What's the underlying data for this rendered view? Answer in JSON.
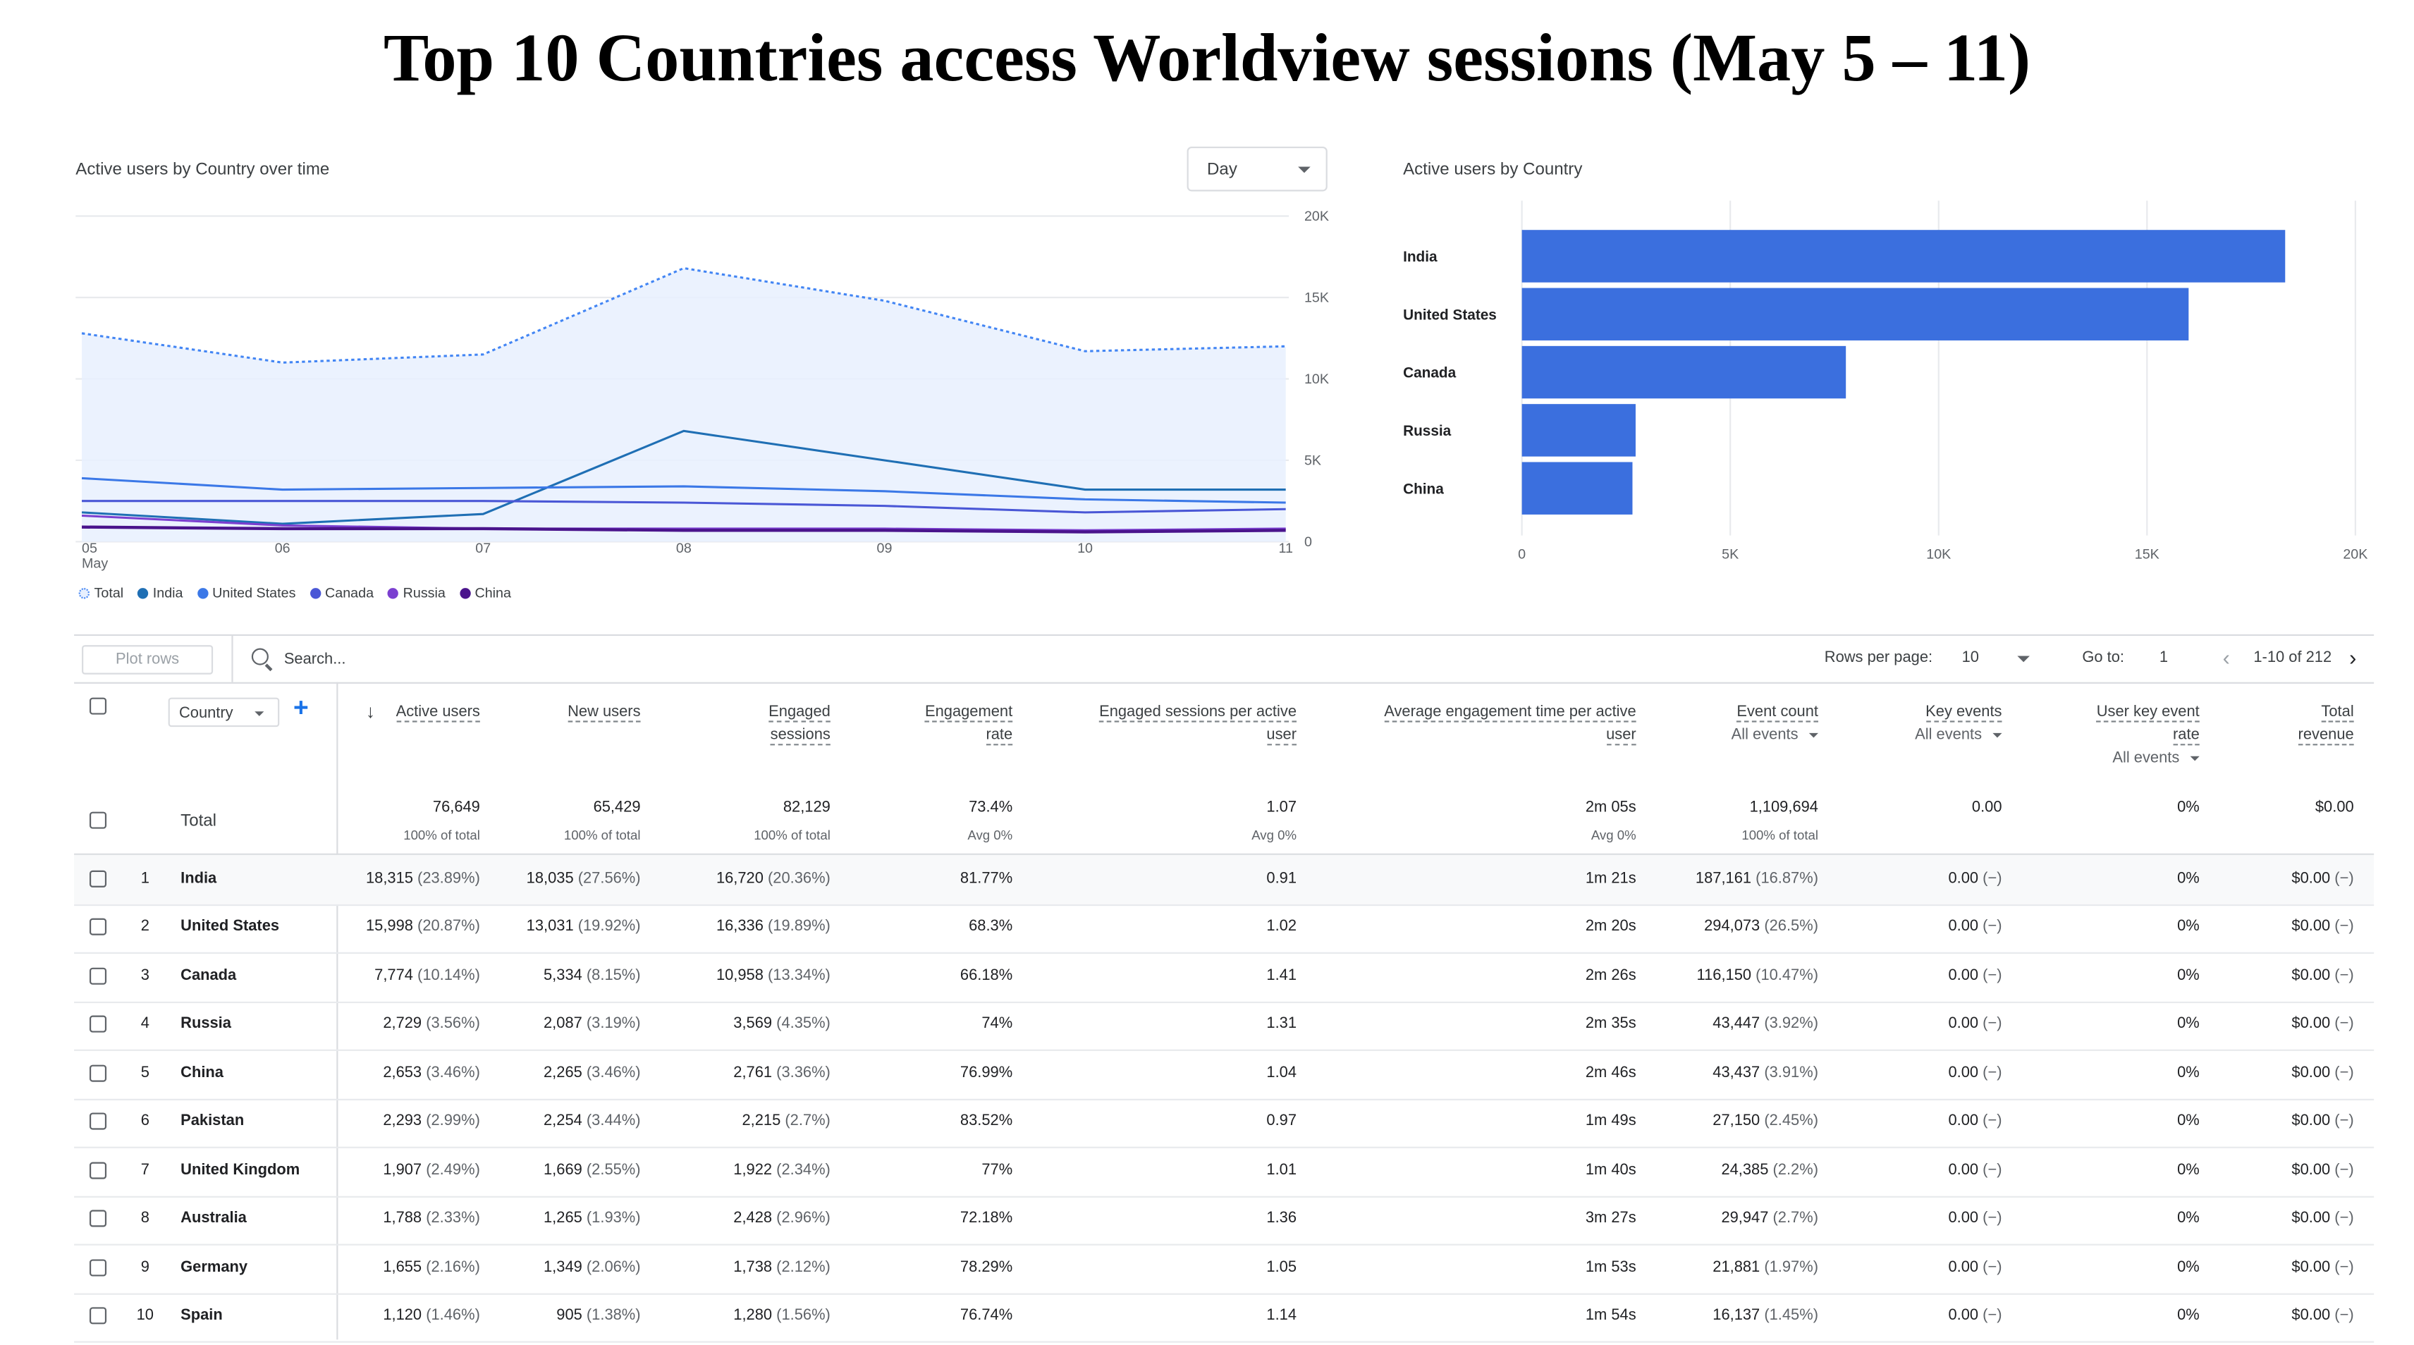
{
  "page_title": "Top 10 Countries access Worldview sessions (May 5 – 11)",
  "line_card": {
    "title": "Active users by Country over time",
    "granularity": "Day",
    "legend": [
      {
        "name": "Total",
        "color": "#4285f4",
        "hollow": true
      },
      {
        "name": "India",
        "color": "#1f6fb4"
      },
      {
        "name": "United States",
        "color": "#3b78e7"
      },
      {
        "name": "Canada",
        "color": "#4a57d6"
      },
      {
        "name": "Russia",
        "color": "#7b3fd0"
      },
      {
        "name": "China",
        "color": "#4a148c"
      }
    ]
  },
  "bar_card": {
    "title": "Active users by Country"
  },
  "chart_data": [
    {
      "type": "line",
      "x": [
        "05",
        "06",
        "07",
        "08",
        "09",
        "10",
        "11"
      ],
      "x_sublabel": "May",
      "ylim": [
        0,
        20000
      ],
      "yticks": [
        "0",
        "5K",
        "10K",
        "15K",
        "20K"
      ],
      "grid": true,
      "series": [
        {
          "name": "Total",
          "values": [
            12800,
            11000,
            11500,
            16800,
            14800,
            11700,
            12000
          ],
          "color": "#4285f4",
          "dashed": true,
          "area": true
        },
        {
          "name": "India",
          "values": [
            1800,
            1100,
            1700,
            6800,
            5000,
            3200,
            3200
          ],
          "color": "#1f6fb4"
        },
        {
          "name": "United States",
          "values": [
            3900,
            3200,
            3300,
            3400,
            3100,
            2600,
            2400
          ],
          "color": "#3b78e7"
        },
        {
          "name": "Canada",
          "values": [
            2500,
            2500,
            2500,
            2400,
            2200,
            1800,
            2000
          ],
          "color": "#4a57d6"
        },
        {
          "name": "Russia",
          "values": [
            1600,
            1000,
            800,
            800,
            800,
            700,
            800
          ],
          "color": "#7b3fd0"
        },
        {
          "name": "China",
          "values": [
            900,
            800,
            800,
            700,
            700,
            600,
            700
          ],
          "color": "#4a148c"
        }
      ]
    },
    {
      "type": "bar",
      "orientation": "horizontal",
      "categories": [
        "India",
        "United States",
        "Canada",
        "Russia",
        "China"
      ],
      "values": [
        18315,
        15998,
        7774,
        2729,
        2653
      ],
      "xlim": [
        0,
        20000
      ],
      "xticks": [
        "0",
        "5K",
        "10K",
        "15K",
        "20K"
      ],
      "color": "#3b6fde",
      "grid": true
    }
  ],
  "table": {
    "plot_rows": "Plot rows",
    "search_placeholder": "Search...",
    "rows_per_page_label": "Rows per page:",
    "rows_per_page": "10",
    "goto_label": "Go to:",
    "goto_value": "1",
    "range": "1-10 of 212",
    "dimension": "Country",
    "columns": [
      {
        "l1": "Active users",
        "l2": "",
        "sub": ""
      },
      {
        "l1": "New users",
        "l2": "",
        "sub": ""
      },
      {
        "l1": "Engaged",
        "l2": "sessions",
        "sub": ""
      },
      {
        "l1": "Engagement",
        "l2": "rate",
        "sub": ""
      },
      {
        "l1": "Engaged sessions per active",
        "l2": "user",
        "sub": ""
      },
      {
        "l1": "Average engagement time per active",
        "l2": "user",
        "sub": ""
      },
      {
        "l1": "Event count",
        "l2": "",
        "sub": "All events"
      },
      {
        "l1": "Key events",
        "l2": "",
        "sub": "All events"
      },
      {
        "l1": "User key event",
        "l2": "rate",
        "sub": "All events"
      },
      {
        "l1": "Total",
        "l2": "revenue",
        "sub": ""
      }
    ],
    "total": {
      "label": "Total",
      "values": [
        "76,649",
        "65,429",
        "82,129",
        "73.4%",
        "1.07",
        "2m 05s",
        "1,109,694",
        "0.00",
        "0%",
        "$0.00"
      ],
      "subs": [
        "100% of total",
        "100% of total",
        "100% of total",
        "Avg 0%",
        "Avg 0%",
        "Avg 0%",
        "100% of total",
        "",
        "",
        ""
      ]
    },
    "rows": [
      {
        "n": "1",
        "country": "India",
        "cells": [
          [
            "18,315",
            "(23.89%)"
          ],
          [
            "18,035",
            "(27.56%)"
          ],
          [
            "16,720",
            "(20.36%)"
          ],
          [
            "81.77%",
            ""
          ],
          [
            "0.91",
            ""
          ],
          [
            "1m 21s",
            ""
          ],
          [
            "187,161",
            "(16.87%)"
          ],
          [
            "0.00",
            "(−)"
          ],
          [
            "0%",
            ""
          ],
          [
            "$0.00",
            "(−)"
          ]
        ]
      },
      {
        "n": "2",
        "country": "United States",
        "cells": [
          [
            "15,998",
            "(20.87%)"
          ],
          [
            "13,031",
            "(19.92%)"
          ],
          [
            "16,336",
            "(19.89%)"
          ],
          [
            "68.3%",
            ""
          ],
          [
            "1.02",
            ""
          ],
          [
            "2m 20s",
            ""
          ],
          [
            "294,073",
            "(26.5%)"
          ],
          [
            "0.00",
            "(−)"
          ],
          [
            "0%",
            ""
          ],
          [
            "$0.00",
            "(−)"
          ]
        ]
      },
      {
        "n": "3",
        "country": "Canada",
        "cells": [
          [
            "7,774",
            "(10.14%)"
          ],
          [
            "5,334",
            "(8.15%)"
          ],
          [
            "10,958",
            "(13.34%)"
          ],
          [
            "66.18%",
            ""
          ],
          [
            "1.41",
            ""
          ],
          [
            "2m 26s",
            ""
          ],
          [
            "116,150",
            "(10.47%)"
          ],
          [
            "0.00",
            "(−)"
          ],
          [
            "0%",
            ""
          ],
          [
            "$0.00",
            "(−)"
          ]
        ]
      },
      {
        "n": "4",
        "country": "Russia",
        "cells": [
          [
            "2,729",
            "(3.56%)"
          ],
          [
            "2,087",
            "(3.19%)"
          ],
          [
            "3,569",
            "(4.35%)"
          ],
          [
            "74%",
            ""
          ],
          [
            "1.31",
            ""
          ],
          [
            "2m 35s",
            ""
          ],
          [
            "43,447",
            "(3.92%)"
          ],
          [
            "0.00",
            "(−)"
          ],
          [
            "0%",
            ""
          ],
          [
            "$0.00",
            "(−)"
          ]
        ]
      },
      {
        "n": "5",
        "country": "China",
        "cells": [
          [
            "2,653",
            "(3.46%)"
          ],
          [
            "2,265",
            "(3.46%)"
          ],
          [
            "2,761",
            "(3.36%)"
          ],
          [
            "76.99%",
            ""
          ],
          [
            "1.04",
            ""
          ],
          [
            "2m 46s",
            ""
          ],
          [
            "43,437",
            "(3.91%)"
          ],
          [
            "0.00",
            "(−)"
          ],
          [
            "0%",
            ""
          ],
          [
            "$0.00",
            "(−)"
          ]
        ]
      },
      {
        "n": "6",
        "country": "Pakistan",
        "cells": [
          [
            "2,293",
            "(2.99%)"
          ],
          [
            "2,254",
            "(3.44%)"
          ],
          [
            "2,215",
            "(2.7%)"
          ],
          [
            "83.52%",
            ""
          ],
          [
            "0.97",
            ""
          ],
          [
            "1m 49s",
            ""
          ],
          [
            "27,150",
            "(2.45%)"
          ],
          [
            "0.00",
            "(−)"
          ],
          [
            "0%",
            ""
          ],
          [
            "$0.00",
            "(−)"
          ]
        ]
      },
      {
        "n": "7",
        "country": "United Kingdom",
        "cells": [
          [
            "1,907",
            "(2.49%)"
          ],
          [
            "1,669",
            "(2.55%)"
          ],
          [
            "1,922",
            "(2.34%)"
          ],
          [
            "77%",
            ""
          ],
          [
            "1.01",
            ""
          ],
          [
            "1m 40s",
            ""
          ],
          [
            "24,385",
            "(2.2%)"
          ],
          [
            "0.00",
            "(−)"
          ],
          [
            "0%",
            ""
          ],
          [
            "$0.00",
            "(−)"
          ]
        ]
      },
      {
        "n": "8",
        "country": "Australia",
        "cells": [
          [
            "1,788",
            "(2.33%)"
          ],
          [
            "1,265",
            "(1.93%)"
          ],
          [
            "2,428",
            "(2.96%)"
          ],
          [
            "72.18%",
            ""
          ],
          [
            "1.36",
            ""
          ],
          [
            "3m 27s",
            ""
          ],
          [
            "29,947",
            "(2.7%)"
          ],
          [
            "0.00",
            "(−)"
          ],
          [
            "0%",
            ""
          ],
          [
            "$0.00",
            "(−)"
          ]
        ]
      },
      {
        "n": "9",
        "country": "Germany",
        "cells": [
          [
            "1,655",
            "(2.16%)"
          ],
          [
            "1,349",
            "(2.06%)"
          ],
          [
            "1,738",
            "(2.12%)"
          ],
          [
            "78.29%",
            ""
          ],
          [
            "1.05",
            ""
          ],
          [
            "1m 53s",
            ""
          ],
          [
            "21,881",
            "(1.97%)"
          ],
          [
            "0.00",
            "(−)"
          ],
          [
            "0%",
            ""
          ],
          [
            "$0.00",
            "(−)"
          ]
        ]
      },
      {
        "n": "10",
        "country": "Spain",
        "cells": [
          [
            "1,120",
            "(1.46%)"
          ],
          [
            "905",
            "(1.38%)"
          ],
          [
            "1,280",
            "(1.56%)"
          ],
          [
            "76.74%",
            ""
          ],
          [
            "1.14",
            ""
          ],
          [
            "1m 54s",
            ""
          ],
          [
            "16,137",
            "(1.45%)"
          ],
          [
            "0.00",
            "(−)"
          ],
          [
            "0%",
            ""
          ],
          [
            "$0.00",
            "(−)"
          ]
        ]
      }
    ]
  }
}
